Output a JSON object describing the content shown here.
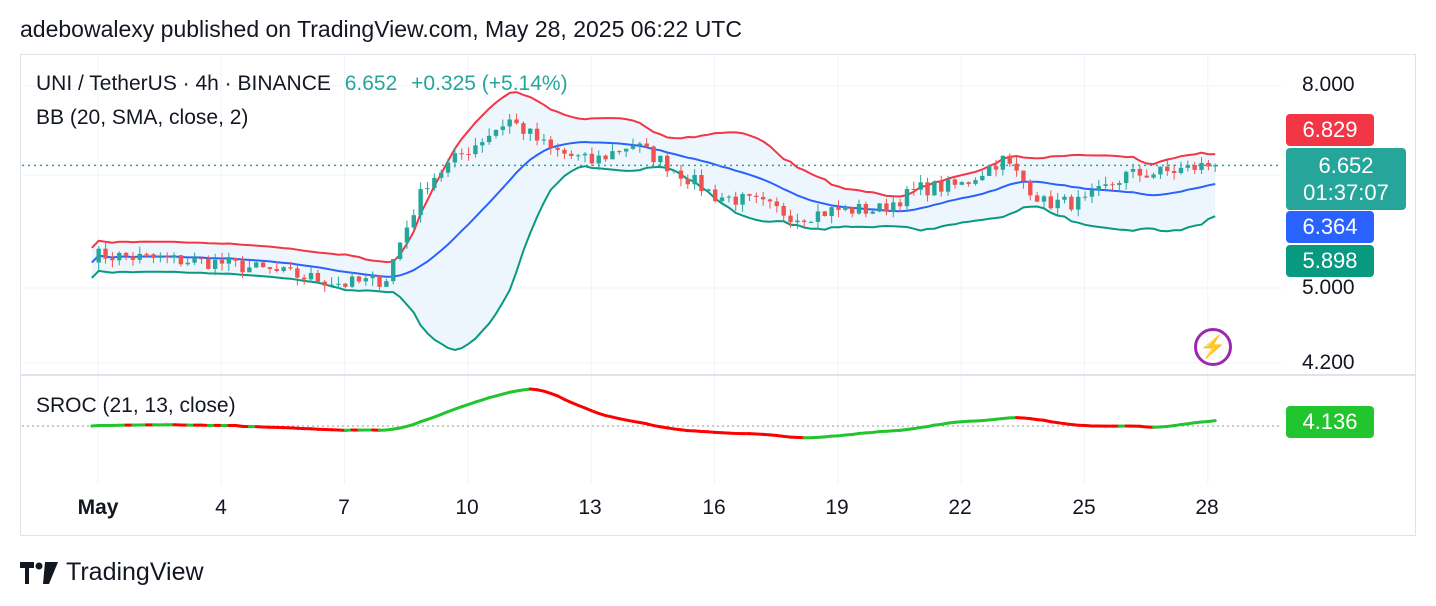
{
  "header": {
    "text": "adebowalexy published on TradingView.com, May 28, 2025 06:22 UTC"
  },
  "legend": {
    "symbol": "UNI / TetherUS · 4h · BINANCE",
    "price": "6.652",
    "change": "+0.325 (+5.14%)",
    "bb": "BB (20, SMA, close, 2)",
    "sroc": "SROC (21, 13, close)"
  },
  "price_axis": {
    "labels": [
      "8.000",
      "5.000",
      "4.200"
    ]
  },
  "price_tags": {
    "upper": "6.829",
    "last": "6.652",
    "countdown": "01:37:07",
    "middle": "6.364",
    "lower": "5.898",
    "sroc": "4.136"
  },
  "time_axis": {
    "labels": [
      "May",
      "4",
      "7",
      "10",
      "13",
      "16",
      "19",
      "22",
      "25",
      "28"
    ]
  },
  "footer": {
    "brand": "TradingView",
    "logo_icon": "tradingview-logo-icon"
  },
  "icons": {
    "flash": "lightning-icon"
  },
  "colors": {
    "up": "#26a69a",
    "down": "#ef5350",
    "bb_upper": "#f23645",
    "bb_basis": "#2962ff",
    "bb_lower": "#089981",
    "bb_fill": "#eef6fd",
    "sroc_up": "#22c52e",
    "sroc_down": "#ff0000",
    "tag_upper": "#f23645",
    "tag_last": "#26a69a",
    "tag_middle": "#2962ff",
    "tag_lower": "#089981",
    "tag_sroc": "#22c52e",
    "flash": "#9c27b0"
  },
  "chart_data": [
    {
      "type": "candlestick",
      "title": "UNI / TetherUS · 4h · BINANCE",
      "y_scale": "log",
      "ylim": [
        4.1,
        8.4
      ],
      "x_ticks": [
        "May",
        "4",
        "7",
        "10",
        "13",
        "16",
        "19",
        "22",
        "25",
        "28"
      ],
      "last_price": 6.652,
      "series": [
        {
          "name": "BB (20, SMA, close, 2)",
          "upper_last": 6.829,
          "basis_last": 6.364,
          "lower_last": 5.898
        }
      ],
      "approx_close_by_day": {
        "May 1": 5.4,
        "May 4": 5.3,
        "May 7": 5.05,
        "May 8": 5.1,
        "May 9": 6.4,
        "May 10": 6.9,
        "May 11": 7.4,
        "May 12": 6.9,
        "May 13": 6.7,
        "May 14": 7.0,
        "May 15": 6.6,
        "May 16": 6.2,
        "May 17": 6.1,
        "May 18": 5.9,
        "May 19": 6.0,
        "May 20": 6.0,
        "May 21": 6.3,
        "May 22": 6.35,
        "May 23": 6.75,
        "May 24": 6.1,
        "May 25": 6.1,
        "May 26": 6.5,
        "May 27": 6.55,
        "May 28": 6.652
      }
    },
    {
      "type": "line",
      "title": "SROC (21, 13, close)",
      "last_value": 4.136,
      "baseline": 0
    }
  ]
}
